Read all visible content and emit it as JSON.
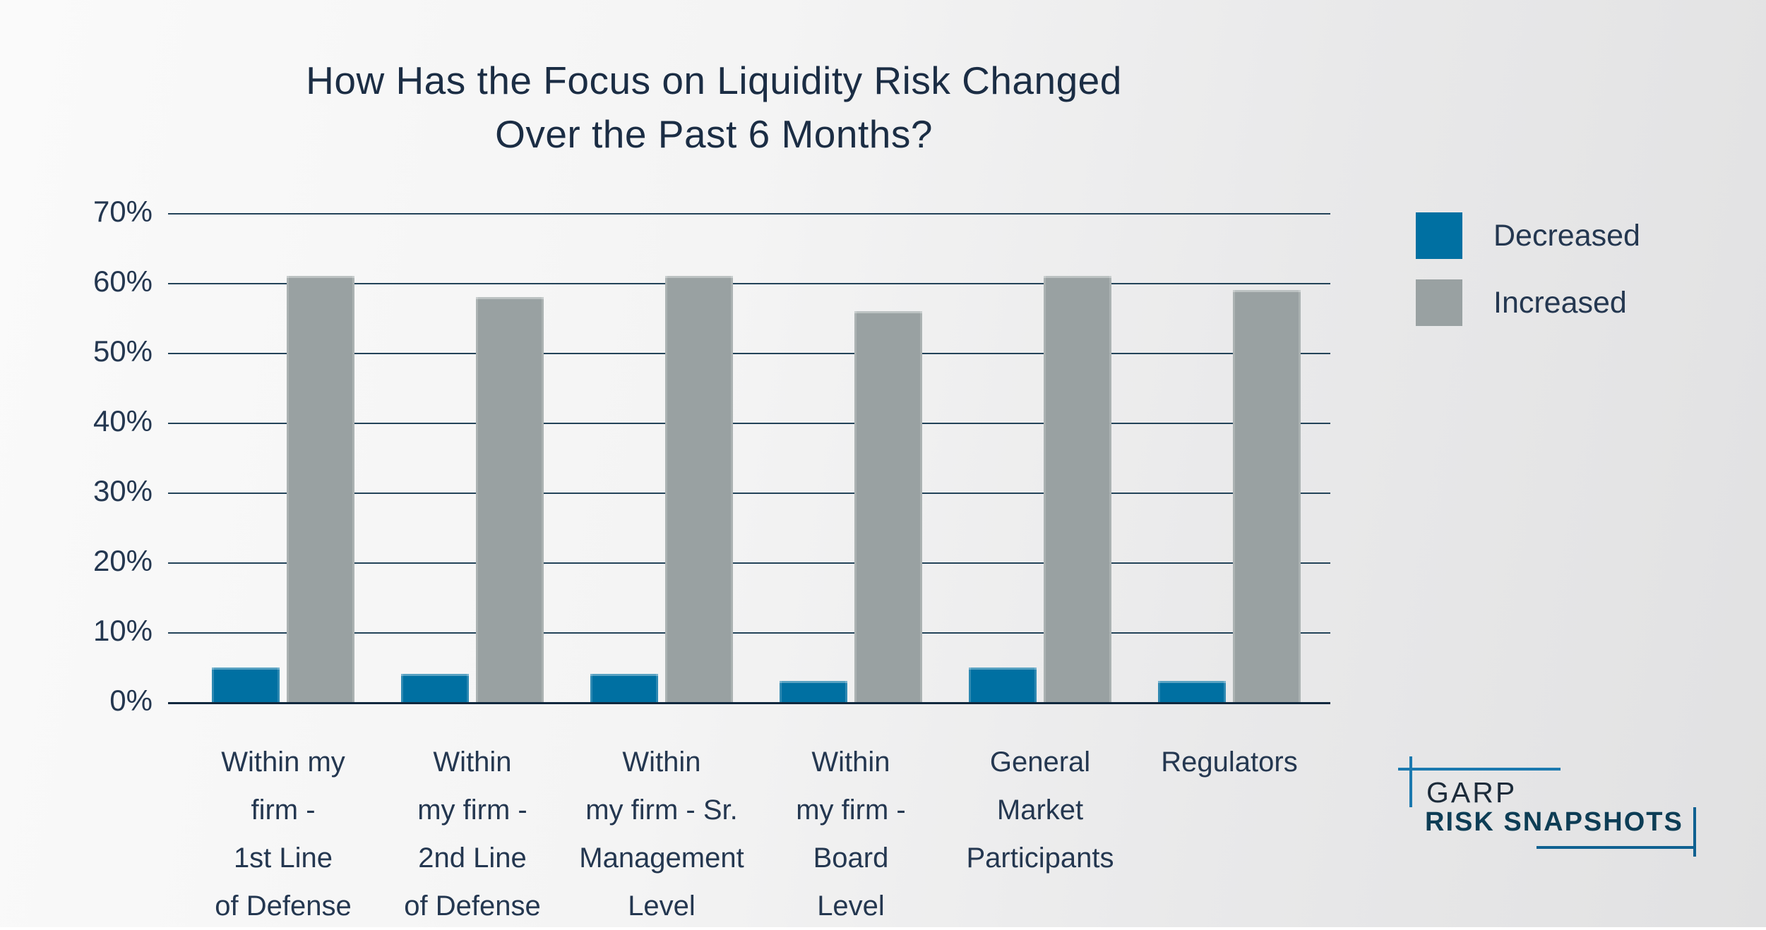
{
  "chart_data": {
    "type": "bar",
    "title": "How Has the Focus on Liquidity Risk Changed Over the Past 6 Months?",
    "title_lines": [
      "How Has the Focus on Liquidity Risk Changed",
      "Over the Past 6 Months?"
    ],
    "categories": [
      "Within my\nfirm -\n1st Line\nof Defense",
      "Within\nmy firm -\n2nd Line\nof Defense",
      "Within\nmy firm - Sr.\nManagement\nLevel",
      "Within\nmy firm -\nBoard\nLevel",
      "General\nMarket\nParticipants",
      "Regulators"
    ],
    "series": [
      {
        "name": "Decreased",
        "color": "#0070a2",
        "values": [
          5,
          4,
          4,
          3,
          5,
          3
        ]
      },
      {
        "name": "Increased",
        "color": "#99a1a2",
        "values": [
          61,
          58,
          61,
          56,
          61,
          59
        ]
      }
    ],
    "y_axis": {
      "unit": "%",
      "max": 70,
      "tick_values": [
        70,
        60,
        50,
        40,
        30,
        20,
        10,
        0
      ],
      "ticks": [
        "70%",
        "60%",
        "50%",
        "40%",
        "30%",
        "20%",
        "10%",
        "0%"
      ]
    },
    "grid": true,
    "legend_position": "right"
  },
  "brand": {
    "name": "GARP",
    "product": "RISK SNAPSHOTS"
  },
  "colors": {
    "bar_decreased": "#0070a2",
    "bar_increased": "#99a1a2",
    "gridline": "#234359",
    "axis_baseline": "#10283e",
    "text": "#243750",
    "title_text": "#1b2d44",
    "logo_blue_light": "#1b79af",
    "logo_blue_dark": "#0f6191",
    "logo_text_dark": "#1c2b3a",
    "logo_text_teal": "#0d3d55"
  }
}
